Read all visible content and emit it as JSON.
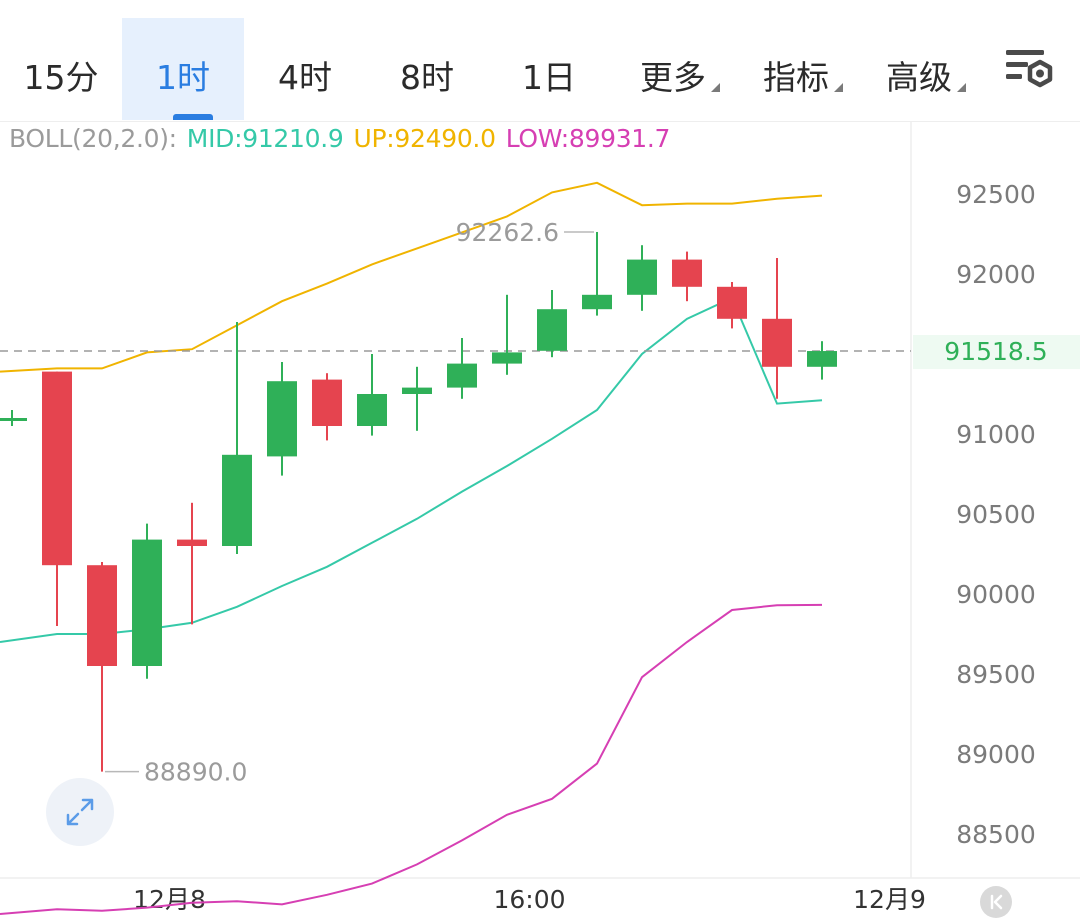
{
  "tabs": [
    {
      "label": "15分",
      "active": false,
      "dropdown": false
    },
    {
      "label": "1时",
      "active": true,
      "dropdown": false
    },
    {
      "label": "4时",
      "active": false,
      "dropdown": false
    },
    {
      "label": "8时",
      "active": false,
      "dropdown": false
    },
    {
      "label": "1日",
      "active": false,
      "dropdown": false
    },
    {
      "label": "更多",
      "active": false,
      "dropdown": true
    },
    {
      "label": "指标",
      "active": false,
      "dropdown": true
    },
    {
      "label": "高级",
      "active": false,
      "dropdown": true
    }
  ],
  "toolbar": {
    "settings_icon": "chart-settings-icon"
  },
  "legend": {
    "name": "BOLL(20,2.0):",
    "mid": "MID:91210.9",
    "up": "UP:92490.0",
    "low": "LOW:89931.7"
  },
  "colors": {
    "up_candle": "#2fb058",
    "down_candle": "#e5444f",
    "mid_line": "#35c9a8",
    "upper_band": "#f0b400",
    "lower_band": "#d63fb3",
    "price_tag_text": "#2fb058",
    "price_tag_bg": "#eefaf2",
    "active_tab": "#2a7de1"
  },
  "chart_data": {
    "type": "candlestick",
    "indicator": "BOLL(20,2.0)",
    "y_ticks": [
      92500,
      92000,
      91000,
      90500,
      90000,
      89500,
      89000,
      88500
    ],
    "y_range": [
      88000,
      92950
    ],
    "x_labels": [
      {
        "label": "12月8",
        "index": 3.5
      },
      {
        "label": "16:00",
        "index": 11.5
      },
      {
        "label": "12月9",
        "index": 19.5
      }
    ],
    "candles": [
      {
        "o": 91100,
        "h": 91150,
        "l": 91050,
        "c": 91100
      },
      {
        "o": 91390,
        "h": 91390,
        "l": 89800,
        "c": 90180
      },
      {
        "o": 90180,
        "h": 90200,
        "l": 88890,
        "c": 89550
      },
      {
        "o": 89550,
        "h": 90440,
        "l": 89470,
        "c": 90340
      },
      {
        "o": 90340,
        "h": 90570,
        "l": 89810,
        "c": 90300
      },
      {
        "o": 90300,
        "h": 91700,
        "l": 90250,
        "c": 90870
      },
      {
        "o": 90860,
        "h": 91450,
        "l": 90740,
        "c": 91330
      },
      {
        "o": 91340,
        "h": 91380,
        "l": 90960,
        "c": 91050
      },
      {
        "o": 91050,
        "h": 91500,
        "l": 90990,
        "c": 91250
      },
      {
        "o": 91250,
        "h": 91420,
        "l": 91020,
        "c": 91290
      },
      {
        "o": 91290,
        "h": 91600,
        "l": 91220,
        "c": 91440
      },
      {
        "o": 91440,
        "h": 91870,
        "l": 91370,
        "c": 91510
      },
      {
        "o": 91520,
        "h": 91900,
        "l": 91480,
        "c": 91780
      },
      {
        "o": 91780,
        "h": 92262.6,
        "l": 91740,
        "c": 91870
      },
      {
        "o": 91870,
        "h": 92180,
        "l": 91770,
        "c": 92090
      },
      {
        "o": 92090,
        "h": 92140,
        "l": 91830,
        "c": 91920
      },
      {
        "o": 91920,
        "h": 91950,
        "l": 91660,
        "c": 91720
      },
      {
        "o": 91720,
        "h": 92100,
        "l": 91220,
        "c": 91420
      },
      {
        "o": 91420,
        "h": 91580,
        "l": 91340,
        "c": 91518.5
      }
    ],
    "boll_mid": [
      89700,
      89750,
      89750,
      89780,
      89820,
      89920,
      90050,
      90170,
      90320,
      90470,
      90640,
      90800,
      90970,
      91150,
      91500,
      91720,
      91850,
      91190,
      91210.9
    ],
    "boll_up": [
      91390,
      91410,
      91410,
      91510,
      91530,
      91680,
      91830,
      91940,
      92060,
      92160,
      92260,
      92360,
      92510,
      92570,
      92430,
      92440,
      92440,
      92470,
      92490.0
    ],
    "boll_low": [
      88000,
      88030,
      88020,
      88040,
      88070,
      88080,
      88060,
      88120,
      88190,
      88310,
      88460,
      88620,
      88720,
      88940,
      89480,
      89700,
      89900,
      89930,
      89931.7
    ],
    "annotations": {
      "high_label": "92262.6",
      "low_label": "88890.0",
      "current_price": "91518.5"
    }
  }
}
